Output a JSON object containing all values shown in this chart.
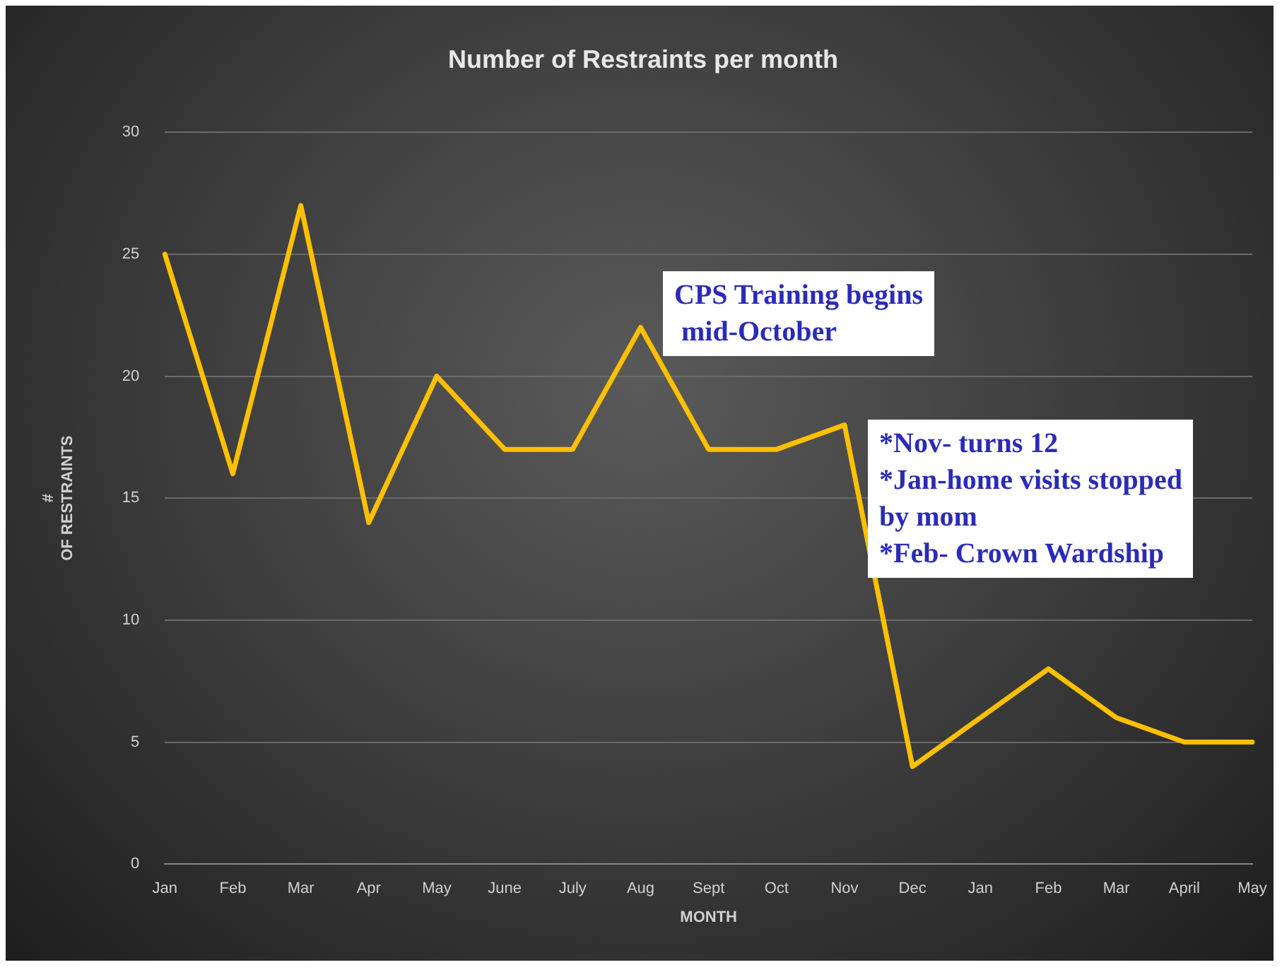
{
  "chart_data": {
    "type": "line",
    "title": "Number of Restraints per month",
    "xlabel": "MONTH",
    "ylabel": "#\nOF RESTRAINTS",
    "categories": [
      "Jan",
      "Feb",
      "Mar",
      "Apr",
      "May",
      "June",
      "July",
      "Aug",
      "Sept",
      "Oct",
      "Nov",
      "Dec",
      "Jan",
      "Feb",
      "Mar",
      "April",
      "May"
    ],
    "series": [
      {
        "color": "#ffc000",
        "values": [
          25,
          16,
          27,
          14,
          20,
          17,
          17,
          22,
          17,
          17,
          18,
          4,
          6,
          8,
          6,
          5,
          5
        ]
      }
    ],
    "ylim": [
      0,
      30
    ],
    "yticks": [
      0,
      5,
      10,
      15,
      20,
      25,
      30
    ],
    "grid": "y",
    "legend": false,
    "marker": "none",
    "line_style": "solid",
    "annotations": [
      "CPS Training begins\n mid-October",
      "*Nov- turns 12\n*Jan-home visits stopped\nby mom\n*Feb- Crown Wardship"
    ]
  }
}
